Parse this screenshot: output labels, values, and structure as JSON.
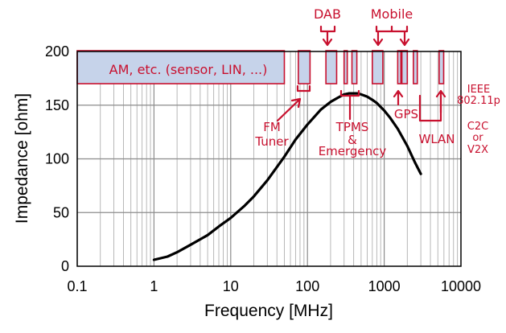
{
  "chart_data": {
    "type": "line",
    "title": "",
    "xlabel": "Frequency [MHz]",
    "ylabel": "Impedance [ohm]",
    "xscale": "log",
    "xlim": [
      0.1,
      10000
    ],
    "ylim": [
      0,
      200
    ],
    "x_ticks": [
      "0.1",
      "1",
      "10",
      "100",
      "1000",
      "10000"
    ],
    "y_ticks": [
      "0",
      "50",
      "100",
      "150",
      "200"
    ],
    "grid": true,
    "series": [
      {
        "name": "Impedance",
        "color": "#000000",
        "x": [
          1,
          1.5,
          2,
          3,
          5,
          7,
          10,
          15,
          20,
          30,
          50,
          70,
          100,
          150,
          200,
          250,
          300,
          350,
          400,
          450,
          500,
          600,
          700,
          800,
          1000,
          1200,
          1500,
          2000,
          2500,
          3000
        ],
        "y": [
          6,
          9,
          13,
          20,
          29,
          37,
          45,
          56,
          65,
          80,
          102,
          118,
          132,
          146,
          153,
          157,
          160,
          161,
          161,
          161,
          160,
          158,
          155,
          152,
          145,
          138,
          128,
          112,
          97,
          86
        ]
      }
    ],
    "bands": [
      {
        "name": "am",
        "x0": 0.1,
        "x1": 50
      },
      {
        "name": "fm",
        "x0": 76,
        "x1": 108
      },
      {
        "name": "dab",
        "x0": 174,
        "x1": 240
      },
      {
        "name": "tpms-1",
        "x0": 300,
        "x1": 330
      },
      {
        "name": "tpms-2",
        "x0": 380,
        "x1": 440
      },
      {
        "name": "mobile-1",
        "x0": 700,
        "x1": 960
      },
      {
        "name": "mobile-2",
        "x0": 1500,
        "x1": 1650
      },
      {
        "name": "mobile-3",
        "x0": 1700,
        "x1": 2000
      },
      {
        "name": "wlan",
        "x0": 2400,
        "x1": 2700
      },
      {
        "name": "c2c",
        "x0": 5200,
        "x1": 5950
      }
    ],
    "annotations": {
      "am": "AM, etc. (sensor, LIN, ...)",
      "dab": "DAB",
      "mobile": "Mobile",
      "fm": [
        "FM",
        "Tuner"
      ],
      "tpms": [
        "TPMS",
        "&",
        "Emergency"
      ],
      "gps": "GPS",
      "wlan": "WLAN",
      "ieee": [
        "IEEE",
        "802.11p"
      ],
      "c2c": [
        "C2C",
        "or",
        "V2X"
      ]
    },
    "colors": {
      "band_fill": "#c6d3ea",
      "band_stroke": "#c8102e",
      "annotation": "#c8102e",
      "curve": "#000000",
      "grid": "#b0b0b0"
    }
  }
}
